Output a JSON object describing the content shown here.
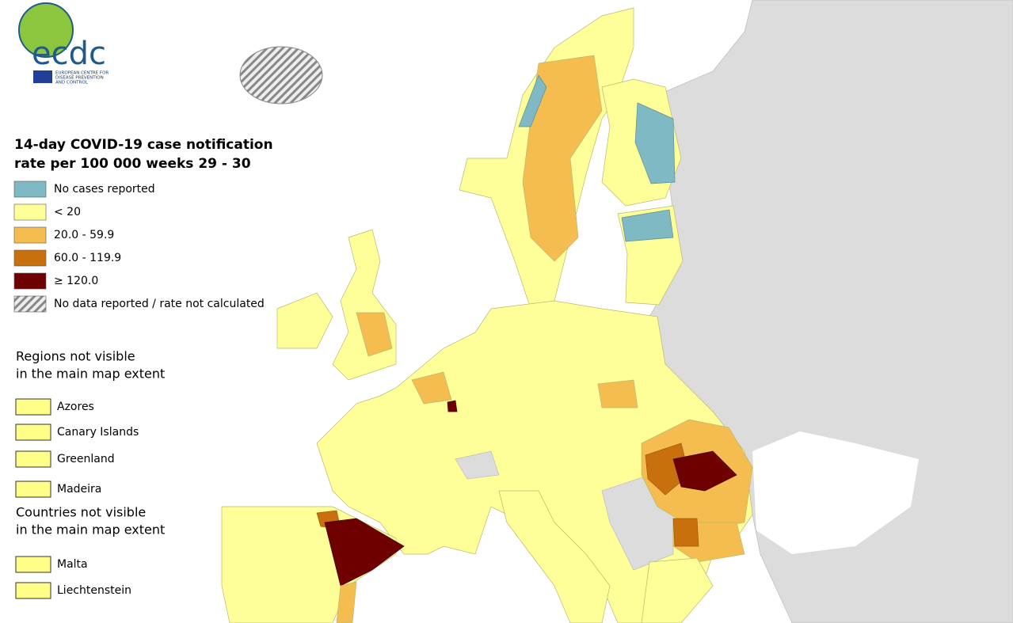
{
  "logo": {
    "name": "ecdc",
    "subtitle": [
      "EUROPEAN CENTRE FOR",
      "DISEASE PREVENTION",
      "AND CONTROL"
    ]
  },
  "legend": {
    "title": [
      "14-day COVID-19 case notification",
      "rate per 100 000 weeks 29 - 30"
    ],
    "items": [
      {
        "label": "No cases reported",
        "color": "#7fb9c4"
      },
      {
        "label": "< 20",
        "color": "#ffff99"
      },
      {
        "label": "20.0 - 59.9",
        "color": "#f5bd4f"
      },
      {
        "label": "60.0 - 119.9",
        "color": "#c8700e"
      },
      {
        "label": "≥ 120.0",
        "color": "#6e0000"
      },
      {
        "label": "No data reported / rate not calculated",
        "color": "#9a9a9a",
        "hatched": true
      }
    ]
  },
  "regions_not_visible": {
    "title": [
      "Regions not visible",
      "in the main map extent"
    ],
    "color": "#ffff88",
    "items": [
      "Azores",
      "Canary Islands",
      "Greenland",
      "Madeira"
    ]
  },
  "countries_not_visible": {
    "title": [
      "Countries not visible",
      "in the main map extent"
    ],
    "color": "#ffff88",
    "items": [
      "Malta",
      "Liechtenstein"
    ]
  }
}
